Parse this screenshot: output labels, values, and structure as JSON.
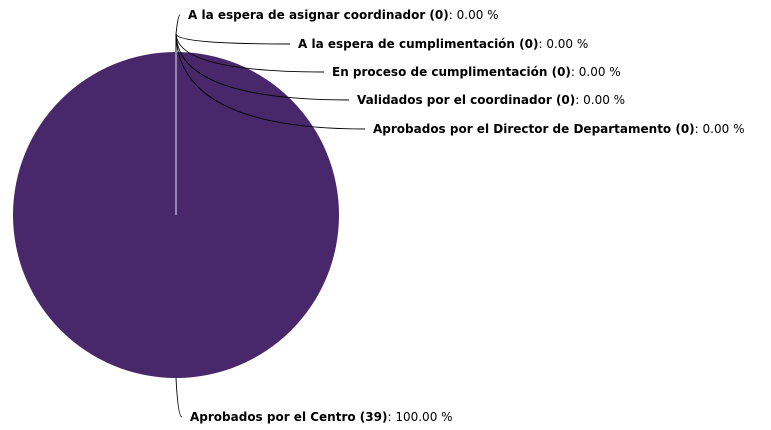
{
  "chart_data": {
    "type": "pie",
    "categories": [
      "A la espera de asignar coordinador (0)",
      "A la espera de cumplimentación (0)",
      "En proceso de cumplimentación (0)",
      "Validados por el coordinador (0)",
      "Aprobados por el Director de Departamento (0)",
      "Aprobados por el Centro (39)"
    ],
    "values": [
      0,
      0,
      0,
      0,
      0,
      100
    ],
    "value_labels": [
      ": 0.00 %",
      ": 0.00 %",
      ": 0.00 %",
      ": 0.00 %",
      ": 0.00 %",
      ": 100.00 %"
    ],
    "color": "#48276a"
  }
}
